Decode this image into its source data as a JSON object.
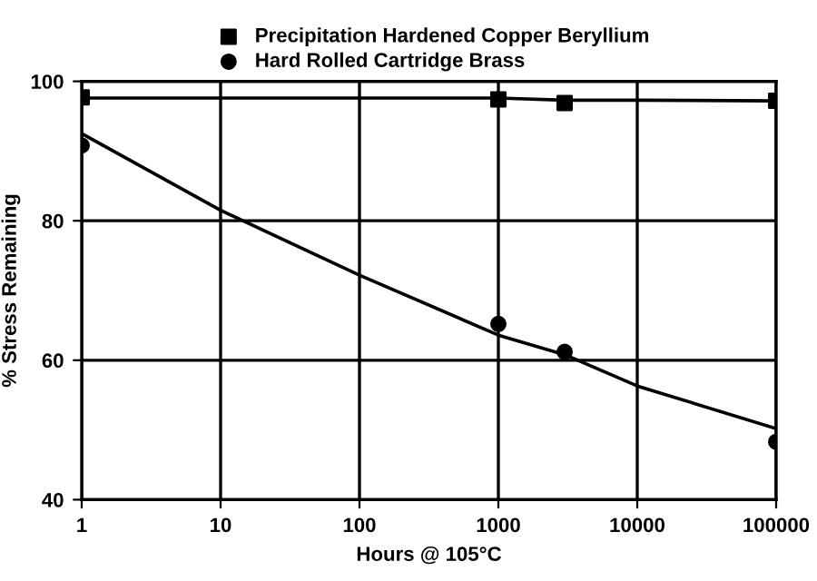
{
  "chart_data": {
    "type": "scatter",
    "xlabel": "Hours @ 105°C",
    "ylabel": "% Stress Remaining",
    "log": "x",
    "grid": true,
    "legend": "top",
    "xlim": [
      1,
      100000
    ],
    "xticks": [
      1,
      10,
      100,
      1000,
      10000,
      100000
    ],
    "ylim": [
      40,
      100
    ],
    "yticks": [
      40,
      60,
      80,
      100
    ],
    "series": [
      {
        "name": "Precipitation Hardened Copper Beryllium",
        "marker": "square",
        "color": "#000000",
        "x": [
          1,
          1000,
          3000,
          100000
        ],
        "values": [
          97.7,
          97.4,
          96.9,
          97.2
        ]
      },
      {
        "name": "Hard Rolled Cartridge Brass",
        "marker": "circle",
        "color": "#000000",
        "x": [
          1,
          1000,
          3000,
          100000
        ],
        "values": [
          90.8,
          65.2,
          61.2,
          48.3
        ]
      },
      {
        "type": "line",
        "marker": "none",
        "color": "#000000",
        "x": [
          1,
          1000,
          3000,
          10000,
          100000
        ],
        "values": [
          97.6,
          97.6,
          97.3,
          97.3,
          97.2
        ]
      },
      {
        "type": "line",
        "marker": "none",
        "color": "#000000",
        "x": [
          1,
          10,
          100,
          1000,
          3000,
          10000,
          100000
        ],
        "values": [
          92.5,
          81.5,
          72.2,
          63.6,
          60.8,
          56.3,
          50.2
        ]
      }
    ]
  }
}
